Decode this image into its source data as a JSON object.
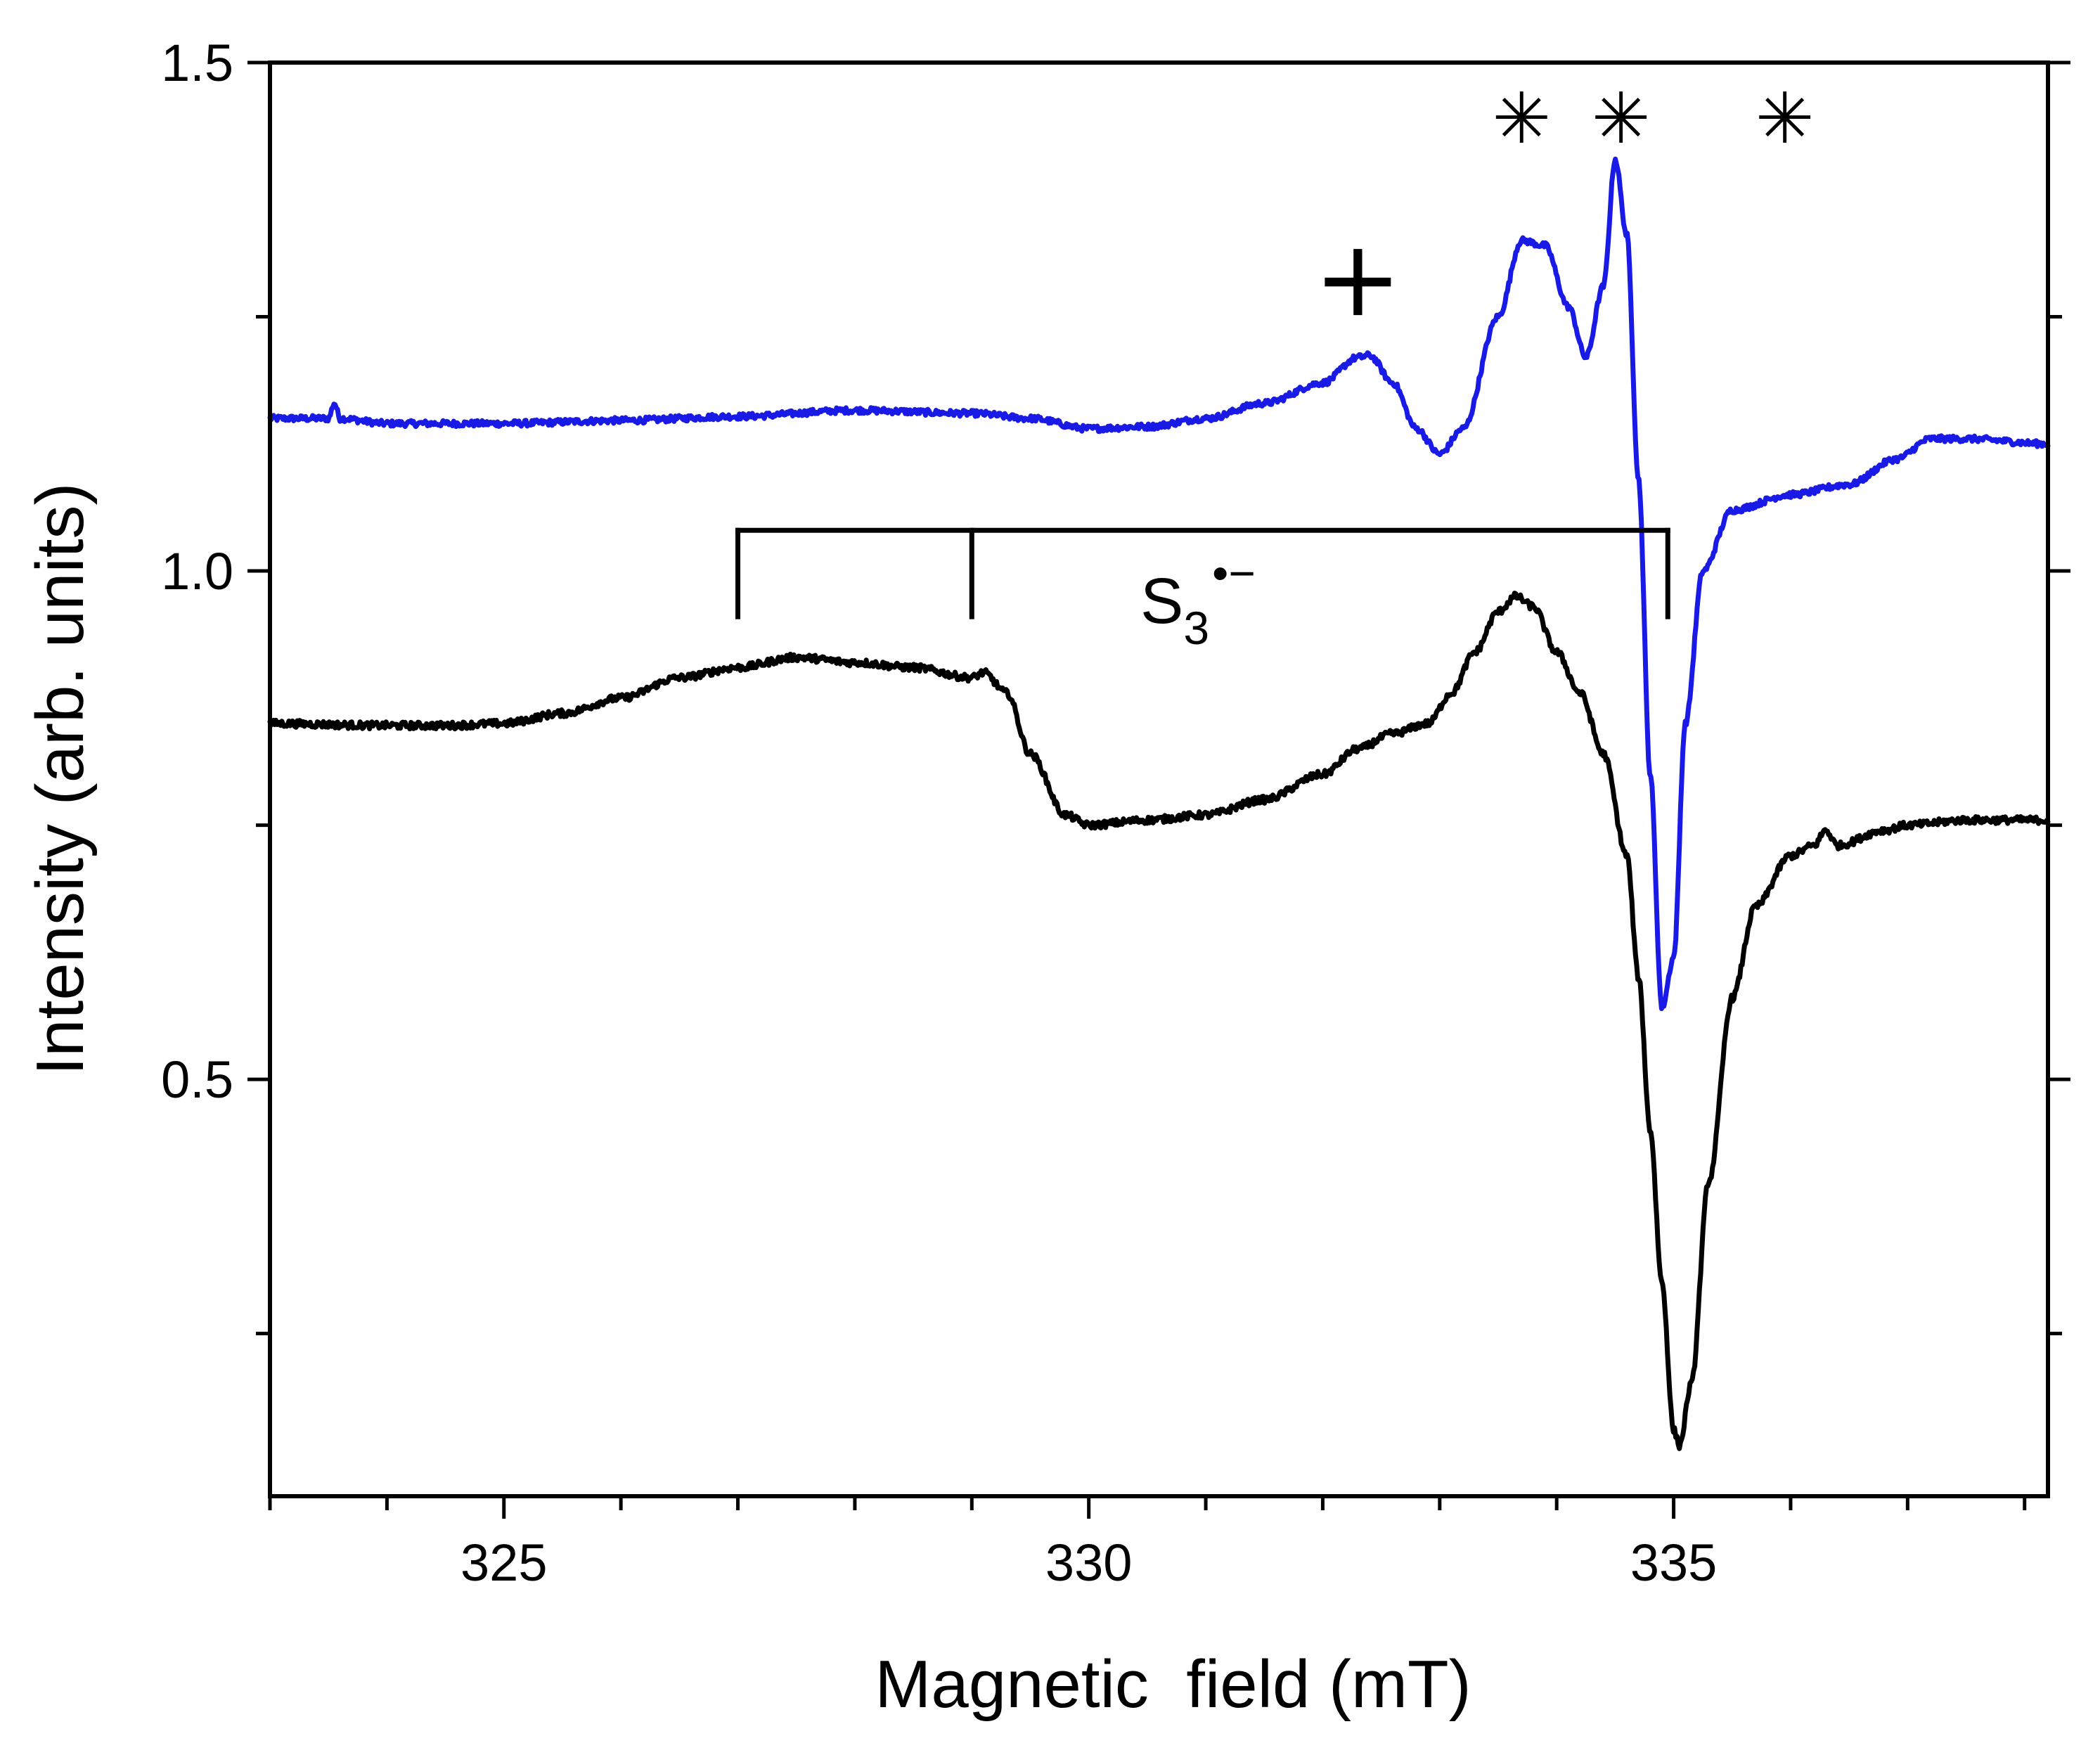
{
  "chart_data": {
    "type": "line",
    "xlabel": "Magnetic  field (mT)",
    "ylabel": "Intensity (arb. units)",
    "xlim": [
      323.0,
      338.2
    ],
    "ylim": [
      0.09,
      1.5
    ],
    "x_ticks": [
      325,
      330,
      335
    ],
    "x_minor_step": 1,
    "y_ticks": [
      0.5,
      1.0,
      1.5
    ],
    "y_tick_labels": [
      "0.5",
      "1.0",
      "1.5"
    ],
    "y_minor_ticks": [
      0.25,
      0.75,
      1.25
    ],
    "series": [
      {
        "name": "blue trace",
        "color": "#1a1ae6",
        "noise": 0.003,
        "points": [
          [
            323.0,
            1.15
          ],
          [
            323.5,
            1.15
          ],
          [
            323.55,
            1.165
          ],
          [
            323.6,
            1.15
          ],
          [
            324.0,
            1.145
          ],
          [
            325.0,
            1.145
          ],
          [
            326.0,
            1.148
          ],
          [
            327.0,
            1.152
          ],
          [
            328.0,
            1.158
          ],
          [
            329.0,
            1.155
          ],
          [
            329.5,
            1.15
          ],
          [
            330.0,
            1.14
          ],
          [
            330.5,
            1.142
          ],
          [
            331.0,
            1.15
          ],
          [
            331.5,
            1.165
          ],
          [
            332.0,
            1.185
          ],
          [
            332.3,
            1.21
          ],
          [
            332.4,
            1.212
          ],
          [
            332.6,
            1.185
          ],
          [
            332.8,
            1.14
          ],
          [
            333.0,
            1.115
          ],
          [
            333.2,
            1.14
          ],
          [
            333.5,
            1.25
          ],
          [
            333.7,
            1.325
          ],
          [
            333.9,
            1.32
          ],
          [
            334.1,
            1.26
          ],
          [
            334.25,
            1.21
          ],
          [
            334.4,
            1.28
          ],
          [
            334.5,
            1.405
          ],
          [
            334.6,
            1.33
          ],
          [
            334.7,
            1.09
          ],
          [
            334.8,
            0.8
          ],
          [
            334.9,
            0.57
          ],
          [
            335.0,
            0.62
          ],
          [
            335.1,
            0.85
          ],
          [
            335.25,
            1.0
          ],
          [
            335.5,
            1.06
          ],
          [
            336.0,
            1.075
          ],
          [
            336.5,
            1.085
          ],
          [
            336.9,
            1.11
          ],
          [
            337.2,
            1.13
          ],
          [
            337.5,
            1.13
          ],
          [
            338.2,
            1.125
          ]
        ]
      },
      {
        "name": "black trace",
        "color": "#000000",
        "noise": 0.0035,
        "points": [
          [
            323.0,
            0.85
          ],
          [
            324.0,
            0.848
          ],
          [
            324.5,
            0.848
          ],
          [
            325.0,
            0.85
          ],
          [
            325.5,
            0.86
          ],
          [
            326.0,
            0.875
          ],
          [
            326.5,
            0.895
          ],
          [
            327.0,
            0.905
          ],
          [
            327.5,
            0.915
          ],
          [
            328.0,
            0.91
          ],
          [
            328.5,
            0.905
          ],
          [
            329.0,
            0.895
          ],
          [
            329.1,
            0.9
          ],
          [
            329.3,
            0.88
          ],
          [
            329.5,
            0.82
          ],
          [
            329.8,
            0.76
          ],
          [
            330.0,
            0.75
          ],
          [
            330.5,
            0.755
          ],
          [
            331.0,
            0.76
          ],
          [
            331.5,
            0.775
          ],
          [
            332.0,
            0.8
          ],
          [
            332.3,
            0.825
          ],
          [
            332.6,
            0.84
          ],
          [
            332.9,
            0.85
          ],
          [
            333.1,
            0.88
          ],
          [
            333.3,
            0.92
          ],
          [
            333.5,
            0.96
          ],
          [
            333.65,
            0.975
          ],
          [
            333.8,
            0.965
          ],
          [
            334.0,
            0.92
          ],
          [
            334.2,
            0.88
          ],
          [
            334.4,
            0.82
          ],
          [
            334.6,
            0.72
          ],
          [
            334.7,
            0.6
          ],
          [
            334.8,
            0.45
          ],
          [
            334.9,
            0.3
          ],
          [
            335.0,
            0.155
          ],
          [
            335.05,
            0.14
          ],
          [
            335.15,
            0.2
          ],
          [
            335.3,
            0.4
          ],
          [
            335.5,
            0.58
          ],
          [
            335.7,
            0.67
          ],
          [
            336.0,
            0.72
          ],
          [
            336.2,
            0.73
          ],
          [
            336.3,
            0.745
          ],
          [
            336.4,
            0.73
          ],
          [
            336.8,
            0.745
          ],
          [
            337.0,
            0.75
          ],
          [
            337.5,
            0.755
          ],
          [
            338.2,
            0.755
          ]
        ]
      }
    ],
    "annotations": {
      "radical_label": {
        "base": "S",
        "subscript": "3",
        "superscript": "•−"
      },
      "bracket_ticks_x": [
        327.0,
        329.0,
        334.95
      ],
      "bracket_y_top": 1.04,
      "bracket_y_bottom": 0.955,
      "plus_marker": {
        "symbol": "+",
        "x": 332.3,
        "y": 1.28
      },
      "asterisk_markers": {
        "symbol": "✳",
        "x": [
          333.7,
          334.55,
          335.95
        ],
        "y": 1.44
      }
    }
  }
}
